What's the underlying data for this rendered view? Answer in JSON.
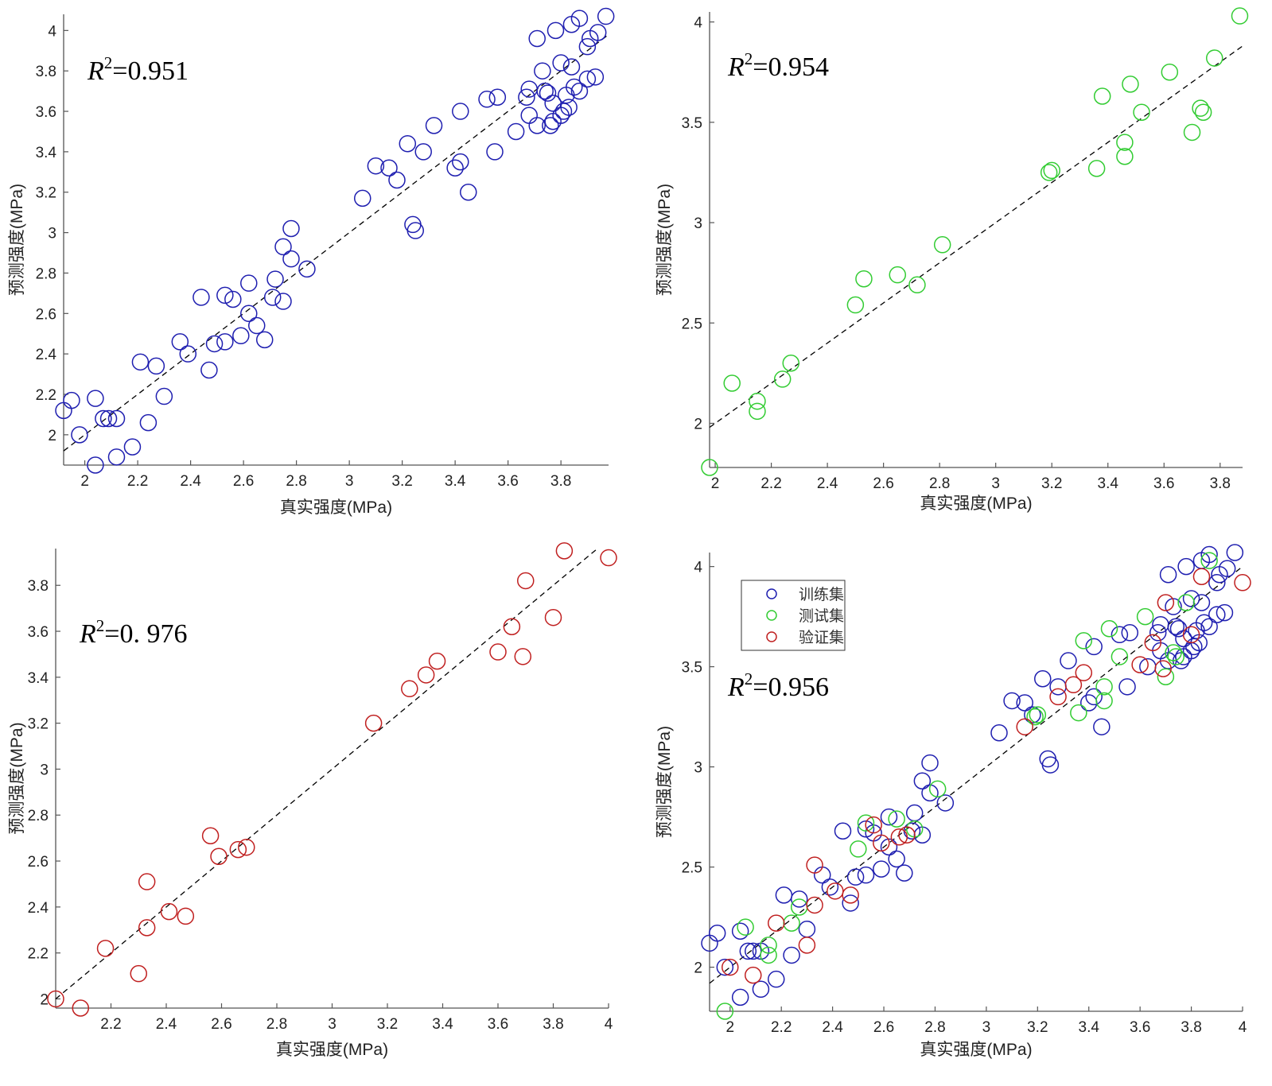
{
  "colors": {
    "train": "#1f1fb0",
    "test": "#33cc33",
    "val": "#c02020",
    "axis": "#555555",
    "fit": "#000000"
  },
  "chart_data": [
    {
      "type": "scatter",
      "title": "",
      "xlabel": "真实强度(MPa)",
      "ylabel": "预测强度(MPa)",
      "xlim": [
        1.92,
        3.98
      ],
      "ylim": [
        1.85,
        4.08
      ],
      "xticks": [
        2,
        2.2,
        2.4,
        2.6,
        2.8,
        3,
        3.2,
        3.4,
        3.6,
        3.8
      ],
      "yticks": [
        2,
        2.2,
        2.4,
        2.6,
        2.8,
        3,
        3.2,
        3.4,
        3.6,
        3.8,
        4
      ],
      "annotation": {
        "r": "R",
        "sup": "2",
        "value": "=0.951"
      },
      "fit_line": [
        [
          1.92,
          1.92
        ],
        [
          3.98,
          3.98
        ]
      ],
      "series": [
        {
          "name": "训练集",
          "color": "train",
          "points": [
            [
              1.92,
              2.12
            ],
            [
              1.95,
              2.17
            ],
            [
              1.98,
              2.0
            ],
            [
              2.04,
              2.18
            ],
            [
              2.07,
              2.08
            ],
            [
              2.09,
              2.08
            ],
            [
              2.12,
              2.08
            ],
            [
              2.04,
              1.85
            ],
            [
              2.12,
              1.89
            ],
            [
              2.18,
              1.94
            ],
            [
              2.21,
              2.36
            ],
            [
              2.24,
              2.06
            ],
            [
              2.27,
              2.34
            ],
            [
              2.3,
              2.19
            ],
            [
              2.36,
              2.46
            ],
            [
              2.39,
              2.4
            ],
            [
              2.44,
              2.68
            ],
            [
              2.47,
              2.32
            ],
            [
              2.49,
              2.45
            ],
            [
              2.53,
              2.46
            ],
            [
              2.53,
              2.69
            ],
            [
              2.56,
              2.67
            ],
            [
              2.59,
              2.49
            ],
            [
              2.62,
              2.6
            ],
            [
              2.62,
              2.75
            ],
            [
              2.65,
              2.54
            ],
            [
              2.68,
              2.47
            ],
            [
              2.71,
              2.68
            ],
            [
              2.72,
              2.77
            ],
            [
              2.75,
              2.66
            ],
            [
              2.75,
              2.93
            ],
            [
              2.78,
              2.87
            ],
            [
              2.78,
              3.02
            ],
            [
              2.84,
              2.82
            ],
            [
              3.05,
              3.17
            ],
            [
              3.1,
              3.33
            ],
            [
              3.15,
              3.32
            ],
            [
              3.18,
              3.26
            ],
            [
              3.22,
              3.44
            ],
            [
              3.24,
              3.04
            ],
            [
              3.25,
              3.01
            ],
            [
              3.28,
              3.4
            ],
            [
              3.32,
              3.53
            ],
            [
              3.4,
              3.32
            ],
            [
              3.42,
              3.35
            ],
            [
              3.42,
              3.6
            ],
            [
              3.45,
              3.2
            ],
            [
              3.52,
              3.66
            ],
            [
              3.55,
              3.4
            ],
            [
              3.56,
              3.67
            ],
            [
              3.63,
              3.5
            ],
            [
              3.67,
              3.67
            ],
            [
              3.68,
              3.71
            ],
            [
              3.68,
              3.58
            ],
            [
              3.71,
              3.53
            ],
            [
              3.71,
              3.96
            ],
            [
              3.73,
              3.8
            ],
            [
              3.74,
              3.7
            ],
            [
              3.75,
              3.69
            ],
            [
              3.76,
              3.53
            ],
            [
              3.77,
              3.55
            ],
            [
              3.77,
              3.64
            ],
            [
              3.78,
              4.0
            ],
            [
              3.8,
              3.84
            ],
            [
              3.8,
              3.58
            ],
            [
              3.81,
              3.6
            ],
            [
              3.82,
              3.68
            ],
            [
              3.83,
              3.62
            ],
            [
              3.84,
              4.03
            ],
            [
              3.84,
              3.82
            ],
            [
              3.85,
              3.72
            ],
            [
              3.87,
              3.7
            ],
            [
              3.87,
              4.06
            ],
            [
              3.9,
              3.92
            ],
            [
              3.9,
              3.76
            ],
            [
              3.91,
              3.96
            ],
            [
              3.93,
              3.77
            ],
            [
              3.94,
              3.99
            ],
            [
              3.97,
              4.07
            ]
          ]
        }
      ]
    },
    {
      "type": "scatter",
      "title": "",
      "xlabel": "真实强度(MPa)",
      "ylabel": "预测强度(MPa)",
      "xlim": [
        1.98,
        3.88
      ],
      "ylim": [
        1.78,
        4.05
      ],
      "xticks": [
        2,
        2.2,
        2.4,
        2.6,
        2.8,
        3,
        3.2,
        3.4,
        3.6,
        3.8
      ],
      "yticks": [
        2,
        2.5,
        3,
        3.5,
        4
      ],
      "annotation": {
        "r": "R",
        "sup": "2",
        "value": "=0.954"
      },
      "fit_line": [
        [
          1.98,
          1.98
        ],
        [
          3.88,
          3.88
        ]
      ],
      "series": [
        {
          "name": "测试集",
          "color": "test",
          "points": [
            [
              1.98,
              1.78
            ],
            [
              2.06,
              2.2
            ],
            [
              2.15,
              2.11
            ],
            [
              2.15,
              2.06
            ],
            [
              2.24,
              2.22
            ],
            [
              2.27,
              2.3
            ],
            [
              2.5,
              2.59
            ],
            [
              2.53,
              2.72
            ],
            [
              2.65,
              2.74
            ],
            [
              2.72,
              2.69
            ],
            [
              2.81,
              2.89
            ],
            [
              3.19,
              3.25
            ],
            [
              3.2,
              3.26
            ],
            [
              3.36,
              3.27
            ],
            [
              3.38,
              3.63
            ],
            [
              3.46,
              3.33
            ],
            [
              3.46,
              3.4
            ],
            [
              3.48,
              3.69
            ],
            [
              3.52,
              3.55
            ],
            [
              3.62,
              3.75
            ],
            [
              3.7,
              3.45
            ],
            [
              3.73,
              3.57
            ],
            [
              3.74,
              3.55
            ],
            [
              3.78,
              3.82
            ],
            [
              3.87,
              4.03
            ]
          ]
        }
      ]
    },
    {
      "type": "scatter",
      "title": "",
      "xlabel": "真实强度(MPa)",
      "ylabel": "预测强度(MPa)",
      "xlim": [
        2.0,
        4.0
      ],
      "ylim": [
        1.96,
        3.96
      ],
      "xticks": [
        2.2,
        2.4,
        2.6,
        2.8,
        3,
        3.2,
        3.4,
        3.6,
        3.8,
        4
      ],
      "yticks": [
        2,
        2.2,
        2.4,
        2.6,
        2.8,
        3,
        3.2,
        3.4,
        3.6,
        3.8
      ],
      "annotation": {
        "r": "R",
        "sup": "2",
        "value": "=0. 976"
      },
      "fit_line": [
        [
          2.0,
          2.0
        ],
        [
          3.96,
          3.96
        ]
      ],
      "series": [
        {
          "name": "验证集",
          "color": "val",
          "points": [
            [
              2.0,
              2.0
            ],
            [
              2.09,
              1.96
            ],
            [
              2.18,
              2.22
            ],
            [
              2.3,
              2.11
            ],
            [
              2.33,
              2.31
            ],
            [
              2.33,
              2.51
            ],
            [
              2.41,
              2.38
            ],
            [
              2.47,
              2.36
            ],
            [
              2.56,
              2.71
            ],
            [
              2.59,
              2.62
            ],
            [
              2.66,
              2.65
            ],
            [
              2.69,
              2.66
            ],
            [
              3.15,
              3.2
            ],
            [
              3.28,
              3.35
            ],
            [
              3.34,
              3.41
            ],
            [
              3.38,
              3.47
            ],
            [
              3.6,
              3.51
            ],
            [
              3.65,
              3.62
            ],
            [
              3.69,
              3.49
            ],
            [
              3.7,
              3.82
            ],
            [
              3.8,
              3.66
            ],
            [
              3.84,
              3.95
            ],
            [
              4.0,
              3.92
            ]
          ]
        }
      ]
    },
    {
      "type": "scatter",
      "title": "",
      "xlabel": "真实强度(MPa)",
      "ylabel": "预测强度(MPa)",
      "xlim": [
        1.92,
        4.0
      ],
      "ylim": [
        1.78,
        4.07
      ],
      "xticks": [
        2,
        2.2,
        2.4,
        2.6,
        2.8,
        3,
        3.2,
        3.4,
        3.6,
        3.8,
        4
      ],
      "yticks": [
        2,
        2.5,
        3,
        3.5,
        4
      ],
      "annotation": {
        "r": "R",
        "sup": "2",
        "value": "=0.956"
      },
      "legend": {
        "position": "top-left",
        "entries": [
          {
            "label": "训练集",
            "color": "train"
          },
          {
            "label": "测试集",
            "color": "test"
          },
          {
            "label": "验证集",
            "color": "val"
          }
        ]
      },
      "fit_line": [
        [
          1.92,
          1.92
        ],
        [
          4.0,
          4.0
        ]
      ],
      "series": [
        {
          "name": "训练集",
          "color": "train",
          "points": "ref:0"
        },
        {
          "name": "测试集",
          "color": "test",
          "points": "ref:1"
        },
        {
          "name": "验证集",
          "color": "val",
          "points": "ref:2"
        }
      ]
    }
  ]
}
